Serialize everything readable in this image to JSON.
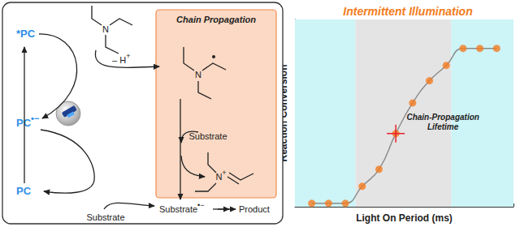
{
  "chart_data": {
    "type": "line",
    "title": "Intermittent Illumination",
    "xlabel": "Light On Period (ms)",
    "ylabel": "Reaction Conversion",
    "x": [
      1,
      2,
      3,
      4,
      5,
      6,
      7,
      8,
      9,
      10,
      11,
      12
    ],
    "series": [
      {
        "type": "line",
        "color": "#8c8c8c",
        "marker": "none",
        "line_style": "solid",
        "values": [
          0.2,
          0.2,
          0.2,
          1.2,
          2.2,
          4.3,
          6.1,
          7.4,
          8.3,
          9.3,
          9.3,
          9.3
        ]
      },
      {
        "type": "scatter",
        "color": "#f47c20",
        "marker": "circle",
        "values": [
          0.2,
          0.2,
          0.2,
          1.2,
          2.2,
          4.3,
          6.1,
          7.4,
          8.3,
          9.3,
          9.3,
          9.3
        ]
      }
    ],
    "xlim": [
      0,
      13
    ],
    "xticks": [
      0,
      1,
      2,
      3,
      4,
      5,
      6,
      7,
      8,
      9,
      10,
      11,
      12,
      13
    ],
    "ylim": [
      0,
      11
    ],
    "yticks": [
      0,
      1,
      2,
      3,
      4,
      5,
      6,
      7,
      8,
      9,
      10,
      11
    ],
    "tick_labels": false,
    "grid": false,
    "bands": [
      {
        "from": 0,
        "to": 3.6,
        "color": "#cdf4f7"
      },
      {
        "from": 3.6,
        "to": 9.3,
        "color": "#e4e4e4"
      },
      {
        "from": 9.3,
        "to": 13,
        "color": "#cdf4f7"
      }
    ],
    "annotations": [
      {
        "text": "Chain-Propagation\nLifetime",
        "x": 6,
        "y": 4.3,
        "color": "#e8202a"
      }
    ]
  },
  "diagram": {
    "excited_catalyst": "*PC",
    "reduced_catalyst": {
      "text": "PC",
      "charge": "•−"
    },
    "ground_catalyst": "PC",
    "deprotonation": {
      "text": "– H",
      "charge": "+"
    },
    "chain_box_title": "Chain Propagation",
    "amine_atom": "N",
    "radical_atom": "N",
    "iminium": {
      "atom": "N",
      "charge": "+"
    },
    "chain_substrate": "Substrate",
    "radical_anion": {
      "text": "Substrate",
      "charge": "•−"
    },
    "product": "Product",
    "cycle_substrate": "Substrate"
  }
}
